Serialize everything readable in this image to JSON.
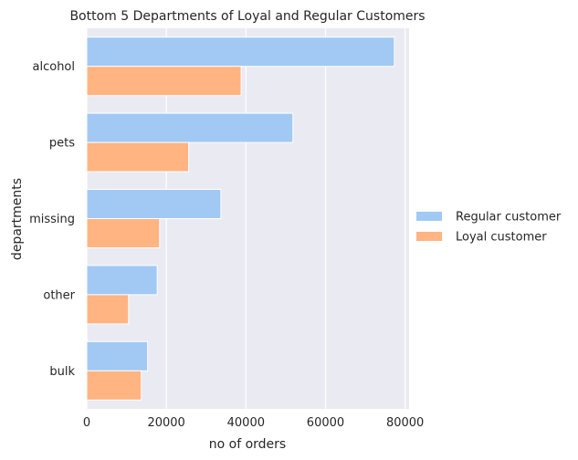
{
  "chart_data": {
    "type": "bar",
    "orientation": "horizontal",
    "title": "Bottom 5 Departments of Loyal and Regular Customers",
    "xlabel": "no of orders",
    "ylabel": "departments",
    "categories": [
      "alcohol",
      "pets",
      "missing",
      "other",
      "bulk"
    ],
    "series": [
      {
        "name": "Regular customer",
        "color": "#a1c9f4",
        "values": [
          77300,
          51800,
          33700,
          17700,
          15300
        ]
      },
      {
        "name": "Loyal customer",
        "color": "#ffb482",
        "values": [
          38800,
          25600,
          18300,
          10500,
          13700
        ]
      }
    ],
    "xlim": [
      0,
      81000
    ],
    "xticks": [
      0,
      20000,
      40000,
      60000,
      80000
    ],
    "xtick_labels": [
      "0",
      "20000",
      "40000",
      "60000",
      "80000"
    ],
    "grid": true,
    "legend_position": "right"
  }
}
